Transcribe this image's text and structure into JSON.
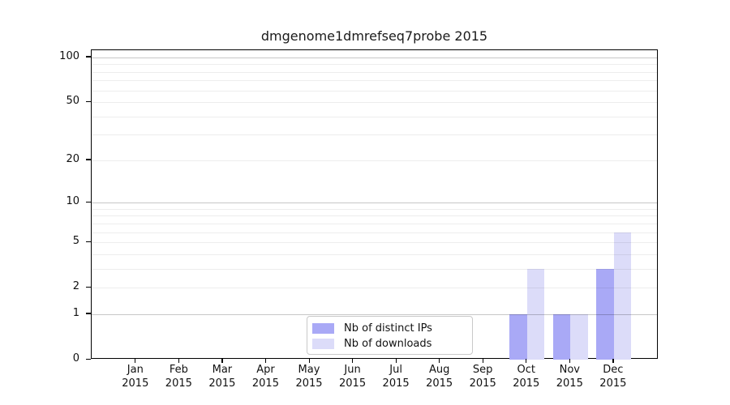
{
  "chart_data": {
    "type": "bar",
    "title": "dmgenome1dmrefseq7probe 2015",
    "yscale": "log1p",
    "ylim": [
      0,
      112
    ],
    "yticks": [
      0,
      1,
      2,
      5,
      10,
      20,
      50,
      100
    ],
    "major_gridlines": [
      1,
      10,
      100
    ],
    "minor_gridlines": [
      2,
      3,
      4,
      5,
      6,
      7,
      8,
      9,
      20,
      30,
      40,
      50,
      60,
      70,
      80,
      90
    ],
    "grid": true,
    "legend_position": "bottom-center",
    "categories": [
      {
        "month": "Jan",
        "year": "2015"
      },
      {
        "month": "Feb",
        "year": "2015"
      },
      {
        "month": "Mar",
        "year": "2015"
      },
      {
        "month": "Apr",
        "year": "2015"
      },
      {
        "month": "May",
        "year": "2015"
      },
      {
        "month": "Jun",
        "year": "2015"
      },
      {
        "month": "Jul",
        "year": "2015"
      },
      {
        "month": "Aug",
        "year": "2015"
      },
      {
        "month": "Sep",
        "year": "2015"
      },
      {
        "month": "Oct",
        "year": "2015"
      },
      {
        "month": "Nov",
        "year": "2015"
      },
      {
        "month": "Dec",
        "year": "2015"
      }
    ],
    "series": [
      {
        "name": "Nb of distinct IPs",
        "color": "#a9a9f6",
        "values": [
          0,
          0,
          0,
          0,
          0,
          0,
          0,
          0,
          0,
          1,
          1,
          3
        ]
      },
      {
        "name": "Nb of downloads",
        "color": "#dcdcf9",
        "values": [
          0,
          0,
          0,
          0,
          0,
          0,
          0,
          0,
          0,
          3,
          1,
          6
        ]
      }
    ]
  },
  "colors": {
    "background": "#ffffff",
    "bar_distinct_ips": "#a9a9f6",
    "bar_downloads": "#dcdcf9",
    "grid_minor": "#ececec",
    "grid_major": "#c8c8c8",
    "axis": "#000000",
    "legend_border": "#c9c9c9",
    "text": "#111111"
  }
}
